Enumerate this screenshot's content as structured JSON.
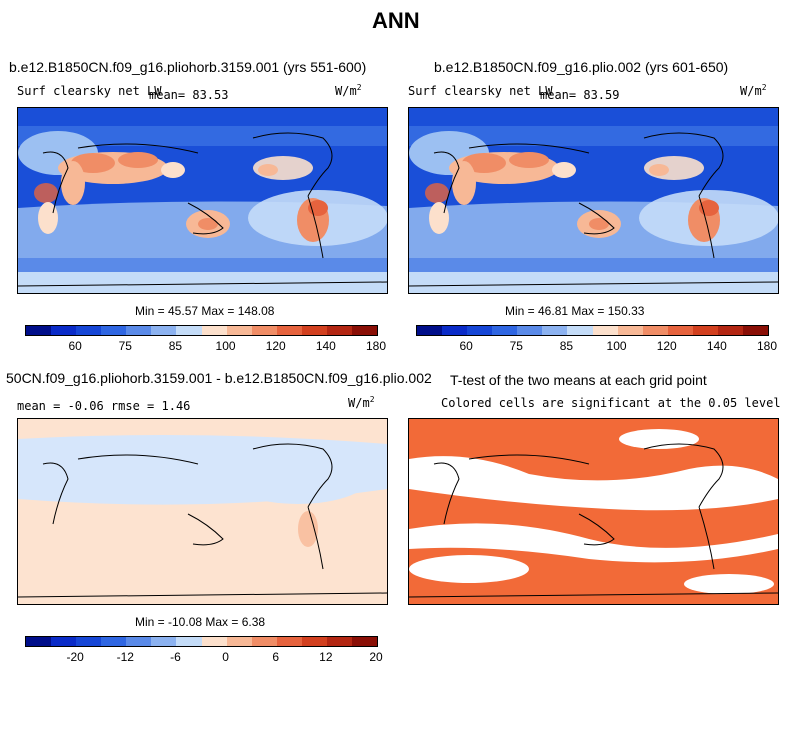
{
  "figure": {
    "title": "ANN"
  },
  "panels": [
    {
      "title": "b.e12.B1850CN.f09_g16.pliohorb.3159.001 (yrs 551-600)",
      "variable": "Surf clearsky net LW",
      "mean_label": "mean=",
      "mean_value": "83.53",
      "units": "W/m",
      "units_sup": "2",
      "stats": "Min =  45.57 Max = 148.08"
    },
    {
      "title": "b.e12.B1850CN.f09_g16.plio.002 (yrs 601-650)",
      "variable": "Surf clearsky net LW",
      "mean_label": "mean=",
      "mean_value": "83.59",
      "units": "W/m",
      "units_sup": "2",
      "stats": "Min =  46.81 Max = 150.33"
    },
    {
      "title": "50CN.f09_g16.pliohorb.3159.001 - b.e12.B1850CN.f09_g16.plio.002",
      "stats_line": "mean =  -0.06     rmse =   1.46",
      "units": "W/m",
      "units_sup": "2",
      "stats": "Min = -10.08 Max =   6.38"
    },
    {
      "title": "T-test of the two means at each grid point",
      "subtitle": "Colored cells are significant at the 0.05 level"
    }
  ],
  "colorbar_abs": {
    "ticks": [
      "60",
      "75",
      "85",
      "100",
      "120",
      "140",
      "180"
    ],
    "colors": [
      "#000e8a",
      "#0a2bc8",
      "#1646d6",
      "#2f66e2",
      "#5a8ae8",
      "#8cb2f0",
      "#c4dcf8",
      "#fce0cc",
      "#f7b896",
      "#f08d66",
      "#e6633e",
      "#d2401f",
      "#b32612",
      "#8a0f06"
    ]
  },
  "colorbar_diff": {
    "ticks": [
      "-20",
      "-12",
      "-6",
      "0",
      "6",
      "12",
      "20"
    ],
    "colors": [
      "#000e8a",
      "#0a2bc8",
      "#1646d6",
      "#2f66e2",
      "#5a8ae8",
      "#8cb2f0",
      "#c4dcf8",
      "#fce0cc",
      "#f7b896",
      "#f08d66",
      "#e6633e",
      "#d2401f",
      "#b32612",
      "#8a0f06"
    ]
  },
  "colors": {
    "deep_blue": "#1a4fd8",
    "mid_blue": "#3f76e6",
    "light_blue": "#9cc0f2",
    "pale_blue": "#d6e6fb",
    "pale_orange": "#fde3d0",
    "orange": "#f28a5f",
    "sig_orange": "#f26a38"
  }
}
